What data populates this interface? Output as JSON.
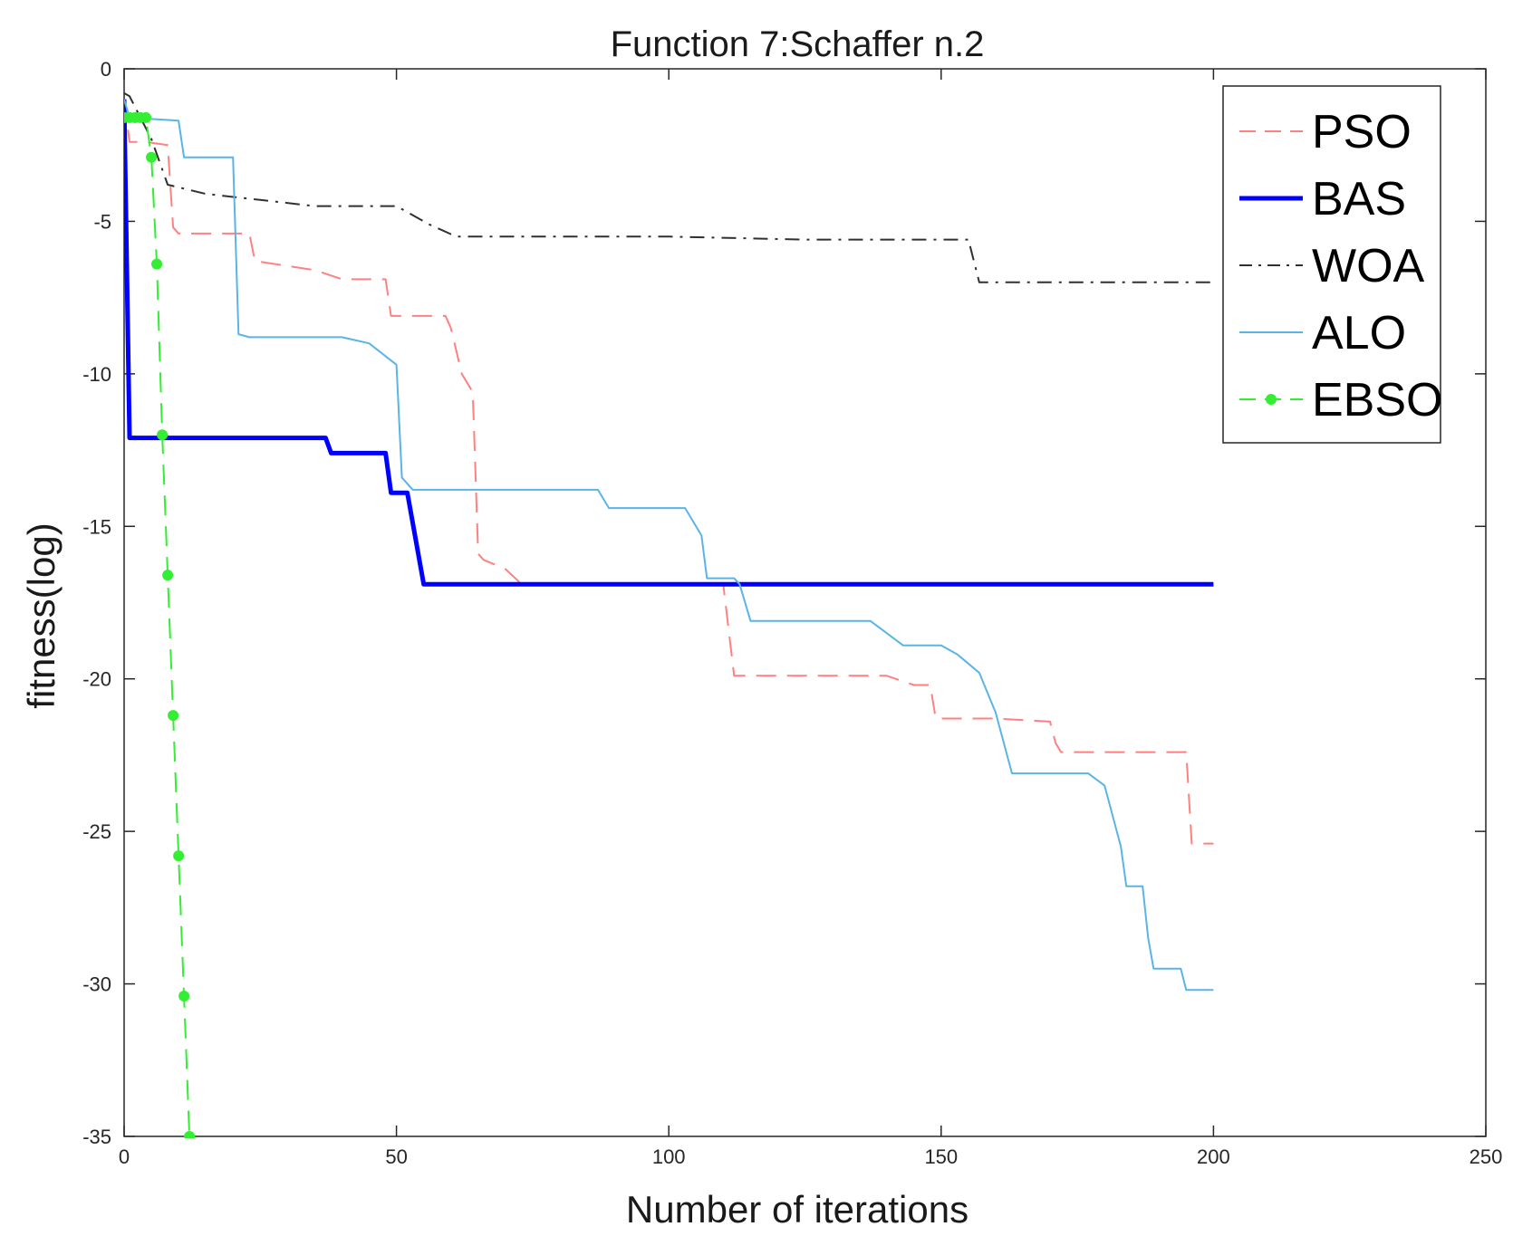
{
  "chart_data": {
    "type": "line",
    "title": "Function 7:Schaffer n.2",
    "xlabel": "Number of iterations",
    "ylabel": "fitness(log)",
    "xlim": [
      0,
      250
    ],
    "ylim": [
      -35,
      0
    ],
    "xticks": [
      0,
      50,
      100,
      150,
      200,
      250
    ],
    "yticks": [
      0,
      -5,
      -10,
      -15,
      -20,
      -25,
      -30,
      -35
    ],
    "grid": false,
    "legend_position": "top-right",
    "series": [
      {
        "name": "PSO",
        "color": "#ff8080",
        "style": "dashed",
        "x": [
          0,
          1,
          4,
          8,
          9,
          10,
          23,
          24,
          35,
          40,
          48,
          49,
          59,
          60,
          62,
          64,
          65,
          66,
          70,
          73,
          110,
          112,
          140,
          145,
          148,
          149,
          160,
          170,
          171,
          172,
          190,
          195,
          196,
          200
        ],
        "y": [
          -1.0,
          -2.4,
          -2.4,
          -2.5,
          -5.2,
          -5.4,
          -5.4,
          -6.3,
          -6.6,
          -6.9,
          -6.9,
          -8.1,
          -8.1,
          -8.5,
          -10.0,
          -10.6,
          -15.9,
          -16.1,
          -16.4,
          -16.9,
          -16.9,
          -19.9,
          -19.9,
          -20.2,
          -20.2,
          -21.3,
          -21.3,
          -21.4,
          -22.1,
          -22.4,
          -22.4,
          -22.4,
          -25.4,
          -25.4
        ]
      },
      {
        "name": "BAS",
        "color": "#0000ff",
        "style": "solid",
        "width": 5,
        "x": [
          0,
          1,
          37,
          38,
          48,
          49,
          52,
          55,
          56,
          200
        ],
        "y": [
          -1.0,
          -12.1,
          -12.1,
          -12.6,
          -12.6,
          -13.9,
          -13.9,
          -16.9,
          -16.9,
          -16.9
        ],
        "marker_step": 5
      },
      {
        "name": "WOA",
        "color": "#303030",
        "style": "dashdot",
        "x": [
          0,
          1,
          5,
          8,
          15,
          25,
          35,
          50,
          56,
          61,
          100,
          125,
          155,
          157,
          200
        ],
        "y": [
          -0.8,
          -0.9,
          -2.3,
          -3.8,
          -4.1,
          -4.3,
          -4.5,
          -4.5,
          -5.1,
          -5.5,
          -5.5,
          -5.6,
          -5.6,
          -7.0,
          -7.0
        ],
        "marker_step": 5
      },
      {
        "name": "ALO",
        "color": "#5ab4e8",
        "style": "solid",
        "x": [
          0,
          1,
          10,
          11,
          20,
          21,
          23,
          30,
          40,
          45,
          50,
          51,
          53,
          54,
          55,
          65,
          87,
          89,
          93,
          100,
          103,
          106,
          107,
          112,
          113,
          115,
          137,
          140,
          143,
          150,
          153,
          157,
          160,
          163,
          170,
          177,
          180,
          183,
          184,
          187,
          188,
          189,
          194,
          195,
          200
        ],
        "y": [
          -1.0,
          -1.6,
          -1.7,
          -2.9,
          -2.9,
          -8.7,
          -8.8,
          -8.8,
          -8.8,
          -9.0,
          -9.7,
          -13.4,
          -13.8,
          -13.8,
          -13.8,
          -13.8,
          -13.8,
          -14.4,
          -14.4,
          -14.4,
          -14.4,
          -15.3,
          -16.7,
          -16.7,
          -16.9,
          -18.1,
          -18.1,
          -18.5,
          -18.9,
          -18.9,
          -19.2,
          -19.8,
          -21.1,
          -23.1,
          -23.1,
          -23.1,
          -23.5,
          -25.5,
          -26.8,
          -26.8,
          -28.5,
          -29.5,
          -29.5,
          -30.2,
          -30.2
        ]
      },
      {
        "name": "EBSO",
        "color": "#33ee33",
        "style": "dashed",
        "x": [
          0,
          1,
          2,
          3,
          4,
          5,
          6,
          7,
          8,
          9,
          10,
          11,
          12,
          13
        ],
        "y": [
          -1.6,
          -1.6,
          -1.6,
          -1.6,
          -1.6,
          -2.9,
          -6.4,
          -12.0,
          -16.6,
          -21.2,
          -25.8,
          -30.4,
          -35.0,
          -35.0
        ],
        "marker": "circle",
        "marker_step": 1
      }
    ]
  }
}
